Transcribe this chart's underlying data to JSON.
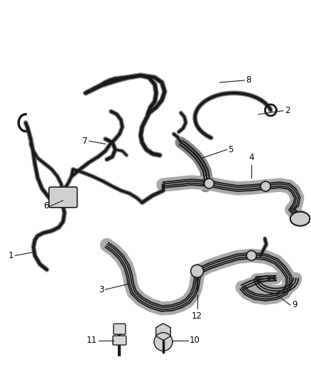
{
  "background_color": "#ffffff",
  "line_color": "#1a1a1a",
  "label_color": "#000000",
  "label_fontsize": 8.5,
  "fig_width": 4.38,
  "fig_height": 5.33,
  "dpi": 100
}
